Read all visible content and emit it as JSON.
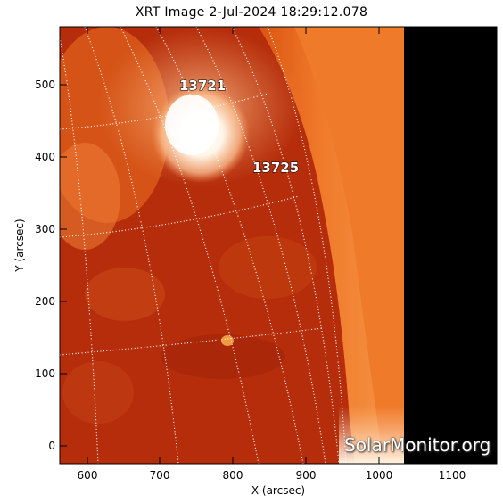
{
  "title": "XRT Image  2-Jul-2024 18:29:12.078",
  "axes": {
    "xlabel": "X (arcsec)",
    "ylabel": "Y (arcsec)",
    "xticks": [
      "600",
      "700",
      "800",
      "900",
      "1000",
      "1100"
    ],
    "yticks": [
      "0",
      "100",
      "200",
      "300",
      "400",
      "500"
    ]
  },
  "regions": [
    {
      "label": "13721"
    },
    {
      "label": "13725"
    }
  ],
  "watermark": "SolarMonitor.org",
  "colors": {
    "disk_dark": "#a8260a",
    "disk_mid": "#d8500f",
    "corona": "#f27d28",
    "bright_core": "#ffffff",
    "off_field": "#000000",
    "grid": "#ffffff"
  }
}
